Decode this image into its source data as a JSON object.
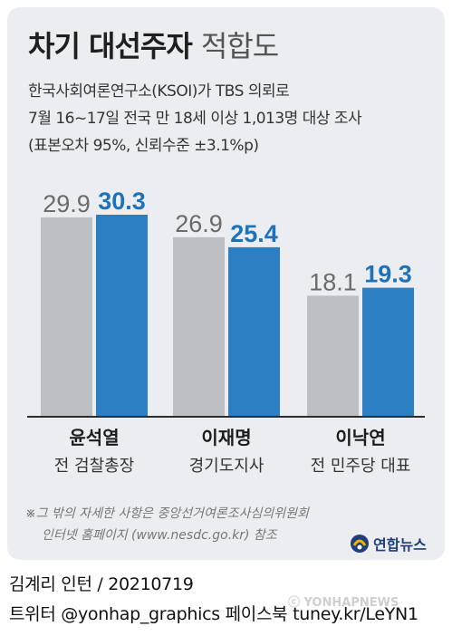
{
  "header": {
    "title_bold": "차기 대선주자",
    "title_light": "적합도",
    "sub1": "한국사회여론연구소(KSOI)가 TBS 의뢰로",
    "sub2": "7월 16~17일 전국 만 18세 이상 1,013명 대상 조사",
    "sub3": "(표본오차 95%, 신뢰수준 ±3.1%p)"
  },
  "chart_data": {
    "type": "bar",
    "categories": [
      "윤석열",
      "이재명",
      "이낙연"
    ],
    "roles": [
      "전 검찰총장",
      "경기도지사",
      "전 민주당 대표"
    ],
    "series": [
      {
        "values": [
          29.9,
          26.9,
          18.1
        ],
        "color": "#bdbec2",
        "label_color": "#6b6b6b"
      },
      {
        "values": [
          30.3,
          25.4,
          19.3
        ],
        "color": "#2b7fc2",
        "label_color": "#1e73b8"
      }
    ],
    "ylim": [
      0,
      30.3
    ]
  },
  "footnote": {
    "line1": "※그 밖의 자세한 사항은 중앙선거여론조사심의위원회",
    "line2": "인터넷 홈페이지 (www.nesdc.go.kr) 참조"
  },
  "logo": {
    "text": "연합뉴스"
  },
  "credits": {
    "line1": "김계리 인턴 / 20210719",
    "line2": "트위터 @yonhap_graphics  페이스북 tuney.kr/LeYN1"
  },
  "watermark": "ⓒ YONHAPNEWS"
}
